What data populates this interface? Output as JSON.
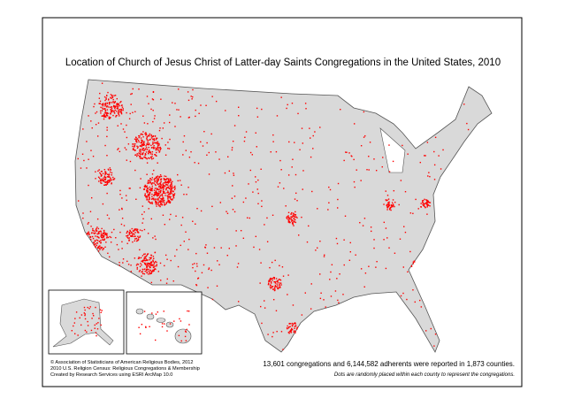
{
  "title": "Location of Church of Jesus Christ of Latter-day Saints Congregations in the United States, 2010",
  "credits": [
    "© Association of Statisticians of American Religious Bodies, 2012",
    "2010 U.S. Religion Census: Religious Congregations & Membership",
    "Created by Research Services using ESRI ArcMap 10.0"
  ],
  "summary": "13,601 congregations and 6,144,582 adherents were reported in 1,873 counties.",
  "note": "Dots are randomly placed within each county to represent the congregations."
}
